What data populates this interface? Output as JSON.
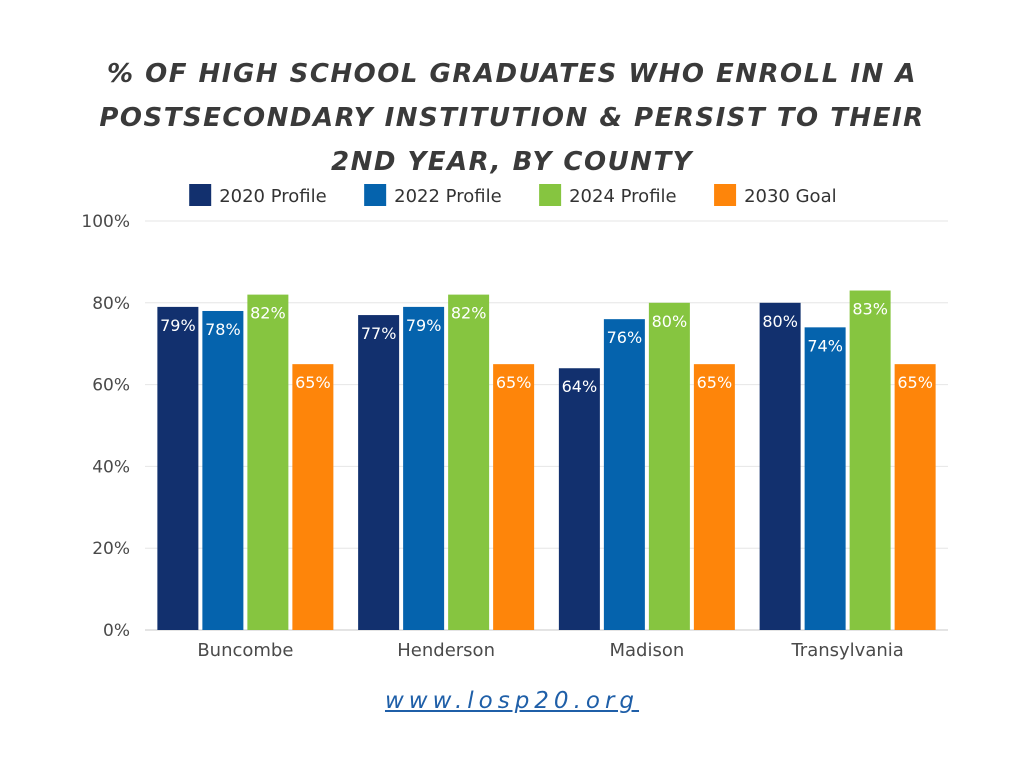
{
  "chart_data": {
    "type": "bar",
    "title": "% OF HIGH SCHOOL GRADUATES WHO ENROLL IN A POSTSECONDARY INSTITUTION & PERSIST TO THEIR 2ND YEAR, BY COUNTY",
    "categories": [
      "Buncombe",
      "Henderson",
      "Madison",
      "Transylvania"
    ],
    "series": [
      {
        "name": "2020 Profile",
        "color": "#12306e",
        "values": [
          79,
          77,
          64,
          80
        ],
        "labels": [
          "79%",
          "77%",
          "64%",
          "80%"
        ]
      },
      {
        "name": "2022 Profile",
        "color": "#0563ad",
        "values": [
          78,
          79,
          76,
          74
        ],
        "labels": [
          "78%",
          "79%",
          "76%",
          "74%"
        ]
      },
      {
        "name": "2024 Profile",
        "color": "#86c540",
        "values": [
          82,
          82,
          80,
          83
        ],
        "labels": [
          "82%",
          "82%",
          "80%",
          "83%"
        ]
      },
      {
        "name": "2030 Goal",
        "color": "#fe850a",
        "values": [
          65,
          65,
          65,
          65
        ],
        "labels": [
          "65%",
          "65%",
          "65%",
          "65%"
        ]
      }
    ],
    "yticks": [
      "0%",
      "20%",
      "40%",
      "60%",
      "80%",
      "100%"
    ],
    "ylim": [
      0,
      100
    ],
    "grid": true,
    "legend": "top"
  },
  "footer": {
    "link_text": "www.losp20.org"
  }
}
